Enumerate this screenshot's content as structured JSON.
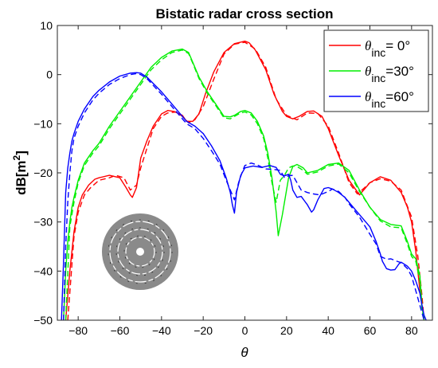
{
  "chart_data": {
    "type": "line",
    "title": "Bistatic radar cross section",
    "xlabel": "θ",
    "ylabel": "dB[m²]",
    "xlim": [
      -90,
      90
    ],
    "ylim": [
      -50,
      10
    ],
    "xticks": [
      -80,
      -60,
      -40,
      -20,
      0,
      20,
      40,
      60,
      80
    ],
    "yticks": [
      10,
      0,
      -10,
      -20,
      -30,
      -40,
      -50
    ],
    "grid": false,
    "legend_position": "top-right",
    "legend": [
      {
        "prefix": "θ",
        "sub": "inc",
        "suffix": "= 0°",
        "color": "#ff0000"
      },
      {
        "prefix": "θ",
        "sub": "inc",
        "suffix": "=30°",
        "color": "#00ee00"
      },
      {
        "prefix": "θ",
        "sub": "inc",
        "suffix": "=60°",
        "color": "#0000ff"
      }
    ],
    "series": [
      {
        "name": "θinc= 0°",
        "color": "#ff0000",
        "style": "solid",
        "x": [
          -86,
          -84,
          -82,
          -80,
          -78,
          -75,
          -72,
          -70,
          -65,
          -60,
          -57,
          -55,
          -54,
          -52,
          -51,
          -50,
          -47,
          -44,
          -40,
          -37,
          -34,
          -30,
          -28,
          -25,
          -22,
          -19,
          -15,
          -10,
          -5,
          0,
          2,
          5,
          10,
          14,
          18,
          20,
          23,
          26,
          30,
          33,
          37,
          40,
          45,
          50,
          55,
          58,
          60,
          65,
          70,
          75,
          78,
          80,
          82,
          84,
          86
        ],
        "y": [
          -50,
          -40,
          -32,
          -27,
          -24.5,
          -22.5,
          -21.3,
          -21,
          -20.5,
          -21,
          -23,
          -24.5,
          -25,
          -23,
          -20,
          -17,
          -13.5,
          -10.5,
          -8,
          -7.3,
          -7.5,
          -8.3,
          -9.5,
          -9.5,
          -8,
          -4,
          0.5,
          4.5,
          6.3,
          6.8,
          6.5,
          5,
          1,
          -4,
          -7.5,
          -8.5,
          -9,
          -8.5,
          -7.5,
          -7.4,
          -8.5,
          -11,
          -16.5,
          -21.5,
          -24.5,
          -23,
          -22,
          -20.8,
          -21.5,
          -24,
          -27,
          -30,
          -36,
          -44,
          -50
        ]
      },
      {
        "name": "θinc= 0° (reference)",
        "color": "#ff0000",
        "style": "dashed",
        "x": [
          -85,
          -82,
          -80,
          -77,
          -74,
          -70,
          -65,
          -62,
          -58,
          -55,
          -52,
          -50,
          -47,
          -44,
          -40,
          -37,
          -33,
          -30,
          -27,
          -24,
          -20,
          -15,
          -10,
          -5,
          0,
          5,
          10,
          15,
          20,
          25,
          30,
          35,
          40,
          45,
          50,
          54,
          57,
          60,
          65,
          70,
          75,
          80,
          83,
          85,
          86
        ],
        "y": [
          -50,
          -33,
          -28,
          -24.5,
          -23,
          -21.5,
          -21,
          -20.5,
          -21,
          -23.5,
          -22.5,
          -19,
          -15,
          -11,
          -8.5,
          -7.8,
          -7.6,
          -8.5,
          -9.8,
          -9.2,
          -6.5,
          -1,
          4.2,
          6.2,
          6.6,
          5.2,
          1.5,
          -5,
          -8.3,
          -9.2,
          -7.8,
          -7.9,
          -10.5,
          -16,
          -22,
          -24.3,
          -23.2,
          -22,
          -21.2,
          -21.7,
          -23.5,
          -29,
          -37,
          -45,
          -50
        ]
      },
      {
        "name": "θinc=30°",
        "color": "#00ee00",
        "style": "solid",
        "x": [
          -87,
          -86,
          -85,
          -84,
          -83,
          -82,
          -80,
          -77,
          -73,
          -70,
          -65,
          -60,
          -55,
          -50,
          -45,
          -40,
          -35,
          -30,
          -27,
          -25,
          -22,
          -18,
          -14,
          -10,
          -7,
          -5,
          -2,
          0,
          3,
          6,
          9,
          11,
          13,
          15,
          16,
          18,
          21,
          23,
          25,
          28,
          30,
          35,
          40,
          45,
          50,
          55,
          60,
          65,
          70,
          75,
          78,
          80,
          82,
          84,
          85,
          86
        ],
        "y": [
          -50,
          -40,
          -34,
          -30,
          -27,
          -25,
          -21.5,
          -18,
          -15.5,
          -14,
          -10.5,
          -7.5,
          -4.5,
          -1.5,
          1.5,
          3.5,
          4.8,
          5.2,
          4.5,
          2.5,
          -0.5,
          -3.5,
          -6,
          -8.5,
          -8.6,
          -8.3,
          -7.5,
          -7.3,
          -7.8,
          -9.5,
          -12.5,
          -16,
          -21,
          -28,
          -32.8,
          -28.5,
          -21,
          -18.7,
          -18.3,
          -19,
          -20,
          -19.5,
          -18.3,
          -18,
          -19.5,
          -23.5,
          -27,
          -29.5,
          -30.5,
          -30.8,
          -34,
          -36.5,
          -37.5,
          -41,
          -47,
          -50
        ]
      },
      {
        "name": "θinc=30° (reference)",
        "color": "#00ee00",
        "style": "dashed",
        "x": [
          -86,
          -84,
          -82,
          -80,
          -77,
          -73,
          -70,
          -65,
          -60,
          -55,
          -50,
          -45,
          -40,
          -35,
          -30,
          -27,
          -25,
          -22,
          -18,
          -14,
          -10,
          -7,
          -5,
          -2,
          0,
          3,
          6,
          9,
          11,
          13,
          15,
          17,
          19,
          21,
          23,
          25,
          28,
          30,
          35,
          40,
          45,
          50,
          55,
          60,
          65,
          70,
          75,
          78,
          80,
          82,
          84,
          85,
          86
        ],
        "y": [
          -50,
          -31,
          -26,
          -22,
          -18.5,
          -16,
          -14.5,
          -11,
          -8,
          -5,
          -2,
          1,
          3,
          4.5,
          5,
          4.3,
          2.3,
          -0.8,
          -3.8,
          -6.3,
          -8.8,
          -9,
          -8.5,
          -7.8,
          -7.6,
          -8.2,
          -10,
          -13,
          -17,
          -22,
          -26,
          -21.5,
          -20.5,
          -19,
          -18.6,
          -18.7,
          -19.5,
          -20.3,
          -19.8,
          -18.6,
          -18.2,
          -20,
          -23.8,
          -27,
          -29.8,
          -31,
          -31.2,
          -34.5,
          -37,
          -38,
          -42,
          -48,
          -50
        ]
      },
      {
        "name": "θinc=60°",
        "color": "#0000ff",
        "style": "solid",
        "x": [
          -88,
          -87,
          -86,
          -85,
          -84,
          -83,
          -82,
          -80,
          -77,
          -73,
          -70,
          -65,
          -60,
          -55,
          -52,
          -50,
          -47,
          -44,
          -40,
          -36,
          -32,
          -28,
          -24,
          -20,
          -16,
          -12,
          -9,
          -7,
          -6,
          -5,
          -4,
          -2,
          0,
          2,
          4,
          8,
          12,
          15,
          17,
          19,
          21,
          22,
          23,
          25,
          27,
          30,
          32,
          33,
          35,
          38,
          40,
          42,
          45,
          48,
          50,
          55,
          60,
          63,
          65,
          66,
          68,
          70,
          72,
          74,
          75,
          78,
          80,
          82,
          84,
          85,
          86,
          87
        ],
        "y": [
          -50,
          -38,
          -24,
          -19,
          -16,
          -13.5,
          -12,
          -9.5,
          -7,
          -4.5,
          -3.2,
          -1.5,
          -0.3,
          0.3,
          0.4,
          0.3,
          -0.5,
          -1.8,
          -3.5,
          -5.5,
          -7.5,
          -9.5,
          -10.5,
          -12,
          -14.5,
          -17.5,
          -21,
          -24,
          -26.5,
          -28.2,
          -24,
          -20.5,
          -19,
          -18.8,
          -18.6,
          -18.9,
          -18.5,
          -18.9,
          -20.3,
          -20.6,
          -20.3,
          -21.5,
          -23.5,
          -25,
          -24.8,
          -26.5,
          -28,
          -27.5,
          -25.5,
          -23.2,
          -23,
          -23.3,
          -24,
          -25,
          -26,
          -28.5,
          -31,
          -34,
          -36.5,
          -38,
          -39.5,
          -39.8,
          -39.7,
          -38.5,
          -38.2,
          -39,
          -40,
          -42,
          -44.5,
          -47,
          -49,
          -50
        ]
      },
      {
        "name": "θinc=60° (reference)",
        "color": "#0000ff",
        "style": "dashed",
        "x": [
          -87,
          -86,
          -85,
          -84,
          -83,
          -82,
          -80,
          -77,
          -73,
          -70,
          -65,
          -60,
          -55,
          -52,
          -50,
          -47,
          -44,
          -40,
          -36,
          -32,
          -28,
          -24,
          -20,
          -16,
          -12,
          -9,
          -7,
          -5,
          -3,
          -1,
          0,
          3,
          6,
          10,
          14,
          17,
          19,
          21,
          23,
          25,
          27,
          30,
          33,
          36,
          40,
          42,
          45,
          48,
          50,
          55,
          60,
          63,
          65,
          68,
          70,
          73,
          75,
          78,
          80,
          82,
          84,
          86
        ],
        "y": [
          -50,
          -35,
          -26,
          -20,
          -15.5,
          -13,
          -10.5,
          -7.8,
          -5.2,
          -3.8,
          -2,
          -0.8,
          0,
          0.2,
          0,
          -0.8,
          -2.2,
          -4,
          -6,
          -8,
          -10,
          -11,
          -13,
          -15.5,
          -18.2,
          -21.5,
          -23.5,
          -25.5,
          -22,
          -19.5,
          -18.5,
          -18,
          -18.4,
          -19.2,
          -19.3,
          -19.5,
          -21,
          -20.6,
          -20.5,
          -22,
          -23.5,
          -24,
          -24.3,
          -24.5,
          -23.8,
          -23.3,
          -23.8,
          -25,
          -26.3,
          -29,
          -32.5,
          -34.5,
          -37,
          -37.6,
          -37.5,
          -38,
          -38.3,
          -39.5,
          -41,
          -44,
          -47,
          -50
        ]
      }
    ]
  }
}
